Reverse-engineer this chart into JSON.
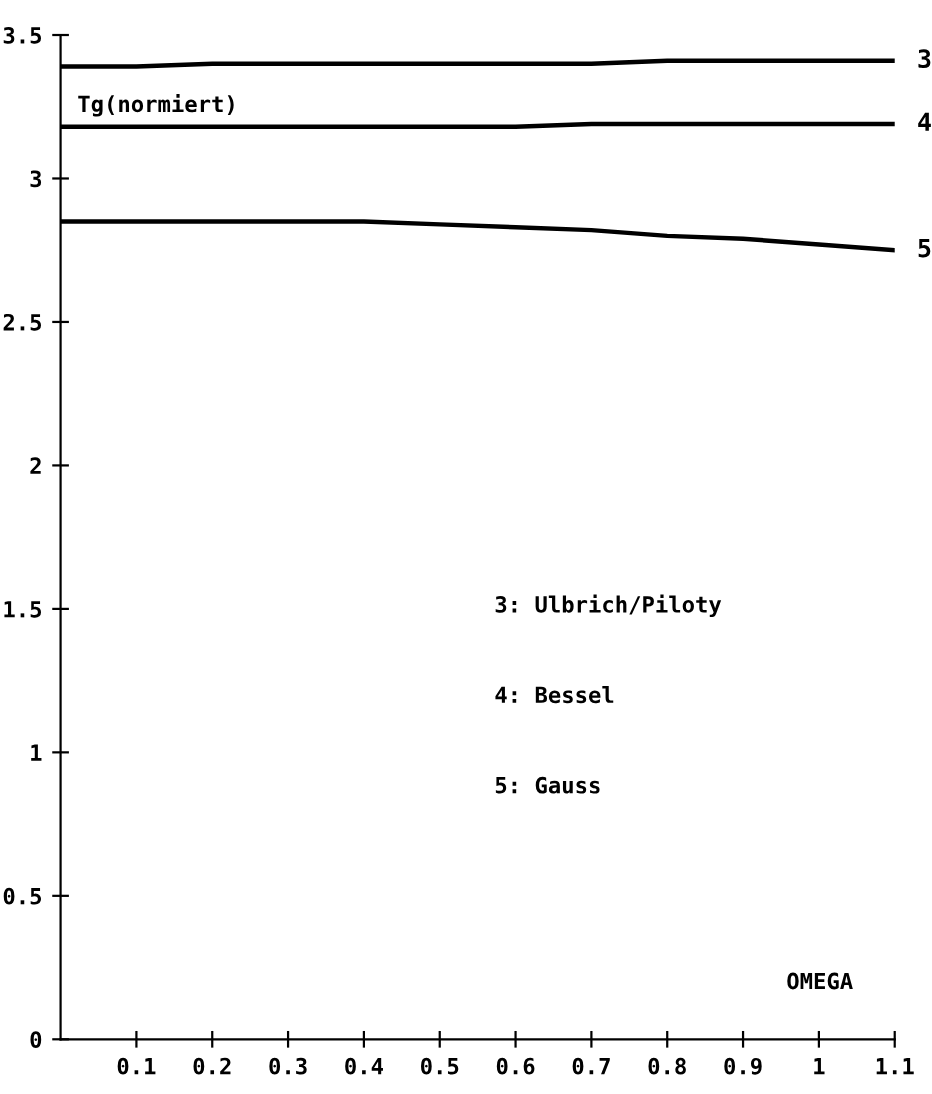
{
  "chart_data": {
    "type": "line",
    "xlabel": "OMEGA",
    "ylabel": "Tg(normiert)",
    "x": [
      0,
      0.1,
      0.2,
      0.3,
      0.4,
      0.5,
      0.6,
      0.7,
      0.8,
      0.9,
      1.0,
      1.1
    ],
    "series": [
      {
        "name": "3",
        "color": "#000000",
        "values": [
          3.39,
          3.39,
          3.4,
          3.4,
          3.4,
          3.4,
          3.4,
          3.4,
          3.41,
          3.41,
          3.41,
          3.41
        ]
      },
      {
        "name": "4",
        "color": "#000000",
        "values": [
          3.18,
          3.18,
          3.18,
          3.18,
          3.18,
          3.18,
          3.18,
          3.19,
          3.19,
          3.19,
          3.19,
          3.19
        ]
      },
      {
        "name": "5",
        "color": "#000000",
        "values": [
          2.85,
          2.85,
          2.85,
          2.85,
          2.85,
          2.84,
          2.83,
          2.82,
          2.8,
          2.79,
          2.77,
          2.75
        ]
      }
    ],
    "annotations": [
      "3: Ulbrich/Piloty",
      "4: Bessel",
      "5: Gauss"
    ],
    "xlim": [
      0,
      1.1
    ],
    "ylim": [
      0,
      3.5
    ],
    "xticks": [
      0.1,
      0.2,
      0.3,
      0.4,
      0.5,
      0.6,
      0.7,
      0.8,
      0.9,
      1,
      1.1
    ],
    "yticks": [
      0,
      0.5,
      1,
      1.5,
      2,
      2.5,
      3,
      3.5
    ],
    "grid": false,
    "legend": false,
    "marker": "none",
    "line_style": "solid"
  }
}
